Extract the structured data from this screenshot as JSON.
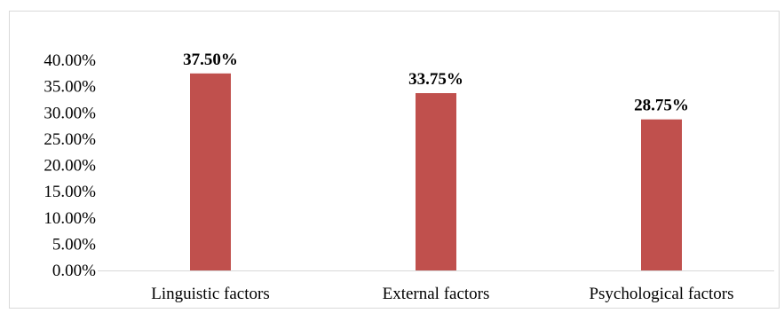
{
  "chart_data": {
    "type": "bar",
    "title": "",
    "xlabel": "",
    "ylabel": "",
    "categories": [
      "Linguistic factors",
      "External factors",
      "Psychological factors"
    ],
    "values": [
      37.5,
      33.75,
      28.75
    ],
    "data_labels": [
      "37.50%",
      "33.75%",
      "28.75%"
    ],
    "ylim": [
      0,
      40
    ],
    "yticks": [
      0,
      5,
      10,
      15,
      20,
      25,
      30,
      35,
      40
    ],
    "ytick_labels": [
      "0.00%",
      "5.00%",
      "10.00%",
      "15.00%",
      "20.00%",
      "25.00%",
      "30.00%",
      "35.00%",
      "40.00%"
    ],
    "grid": false,
    "legend": "none",
    "bar_color": "#c0504d",
    "axis_color": "#d9d9d9"
  }
}
